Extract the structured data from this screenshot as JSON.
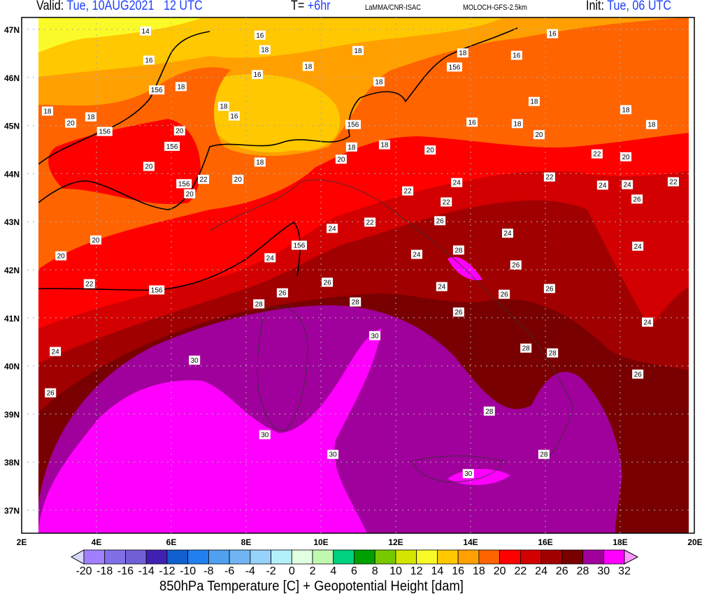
{
  "header": {
    "valid_label": "Valid:",
    "valid_date": "Tue, 10AUG2021",
    "valid_time": "12 UTC",
    "lead_label": "T=",
    "lead_value": "+6hr",
    "institution": "LaMMA/CNR-ISAC",
    "model": "MOLOCH-GFS-2.5km",
    "init_label": "Init:",
    "init_value": "Tue, 06 UTC"
  },
  "map": {
    "lon_range": [
      2,
      20
    ],
    "lat_range": [
      36.5,
      47.25
    ],
    "lat_ticks": [
      "47N",
      "46N",
      "45N",
      "44N",
      "43N",
      "42N",
      "41N",
      "40N",
      "39N",
      "38N",
      "37N"
    ],
    "lat_tick_values": [
      47,
      46,
      45,
      44,
      43,
      42,
      41,
      40,
      39,
      38,
      37
    ],
    "lon_ticks": [
      "2E",
      "4E",
      "6E",
      "8E",
      "10E",
      "12E",
      "14E",
      "16E",
      "18E",
      "20E"
    ],
    "lon_tick_values": [
      2,
      4,
      6,
      8,
      10,
      12,
      14,
      16,
      18,
      20
    ],
    "grid": "dotted",
    "contour_color": "#000000",
    "contour_labels": [
      {
        "t": "14",
        "lon": 5.31,
        "lat": 47.17
      },
      {
        "t": "16",
        "lon": 8.37,
        "lat": 46.88
      },
      {
        "t": "18",
        "lon": 8.5,
        "lat": 46.78
      },
      {
        "t": "16",
        "lon": 5.4,
        "lat": 46.36
      },
      {
        "t": "18",
        "lon": 6.26,
        "lat": 45.81
      },
      {
        "t": "156",
        "lon": 5.61,
        "lat": 45.74
      },
      {
        "t": "18",
        "lon": 2.69,
        "lat": 45.3
      },
      {
        "t": "18",
        "lon": 3.85,
        "lat": 45.18
      },
      {
        "t": "20",
        "lon": 3.31,
        "lat": 45.05
      },
      {
        "t": "156",
        "lon": 4.22,
        "lat": 45.08
      },
      {
        "t": "18",
        "lon": 7.4,
        "lat": 45.4
      },
      {
        "t": "16",
        "lon": 7.68,
        "lat": 45.4
      },
      {
        "t": "20",
        "lon": 6.22,
        "lat": 44.89
      },
      {
        "t": "156",
        "lon": 6.02,
        "lat": 44.77
      },
      {
        "t": "20",
        "lon": 5.4,
        "lat": 44.15
      },
      {
        "t": "156",
        "lon": 6.34,
        "lat": 43.79
      },
      {
        "t": "20",
        "lon": 6.49,
        "lat": 43.58
      },
      {
        "t": "22",
        "lon": 6.86,
        "lat": 43.88
      },
      {
        "t": "20",
        "lon": 7.78,
        "lat": 43.88
      },
      {
        "t": "18",
        "lon": 8.37,
        "lat": 44.24
      },
      {
        "t": "16",
        "lon": 8.3,
        "lat": 46.06
      },
      {
        "t": "18",
        "lon": 9.66,
        "lat": 46.23
      },
      {
        "t": "18",
        "lon": 10.99,
        "lat": 46.56
      },
      {
        "t": "18",
        "lon": 11.55,
        "lat": 45.91
      },
      {
        "t": "156",
        "lon": 10.86,
        "lat": 45.02
      },
      {
        "t": "18",
        "lon": 11.7,
        "lat": 44.6
      },
      {
        "t": "20",
        "lon": 10.54,
        "lat": 44.3
      },
      {
        "t": "18",
        "lon": 10.82,
        "lat": 44.35
      },
      {
        "t": "20",
        "lon": 12.92,
        "lat": 44.49
      },
      {
        "t": "22",
        "lon": 12.32,
        "lat": 43.64
      },
      {
        "t": "22",
        "lon": 13.35,
        "lat": 43.41
      },
      {
        "t": "24",
        "lon": 13.63,
        "lat": 43.61
      },
      {
        "t": "26",
        "lon": 13.18,
        "lat": 43.02
      },
      {
        "t": "28",
        "lon": 13.68,
        "lat": 42.41
      },
      {
        "t": "24",
        "lon": 12.56,
        "lat": 42.32
      },
      {
        "t": "24",
        "lon": 13.23,
        "lat": 41.65
      },
      {
        "t": "22",
        "lon": 11.31,
        "lat": 42.99
      },
      {
        "t": "24",
        "lon": 10.3,
        "lat": 42.86
      },
      {
        "t": "156",
        "lon": 9.42,
        "lat": 42.51
      },
      {
        "t": "24",
        "lon": 8.64,
        "lat": 42.25
      },
      {
        "t": "26",
        "lon": 8.97,
        "lat": 41.52
      },
      {
        "t": "26",
        "lon": 10.17,
        "lat": 41.74
      },
      {
        "t": "28",
        "lon": 8.34,
        "lat": 41.29
      },
      {
        "t": "28",
        "lon": 10.92,
        "lat": 41.33
      },
      {
        "t": "30",
        "lon": 11.44,
        "lat": 40.63
      },
      {
        "t": "30",
        "lon": 6.62,
        "lat": 40.12
      },
      {
        "t": "30",
        "lon": 8.5,
        "lat": 38.57
      },
      {
        "t": "30",
        "lon": 10.32,
        "lat": 38.16
      },
      {
        "t": "30",
        "lon": 13.94,
        "lat": 37.76
      },
      {
        "t": "28",
        "lon": 14.5,
        "lat": 39.06
      },
      {
        "t": "28",
        "lon": 15.96,
        "lat": 38.16
      },
      {
        "t": "28",
        "lon": 16.19,
        "lat": 40.27
      },
      {
        "t": "28",
        "lon": 15.48,
        "lat": 40.37
      },
      {
        "t": "26",
        "lon": 13.68,
        "lat": 41.12
      },
      {
        "t": "26",
        "lon": 14.9,
        "lat": 41.49
      },
      {
        "t": "26",
        "lon": 15.21,
        "lat": 42.1
      },
      {
        "t": "26",
        "lon": 16.11,
        "lat": 41.61
      },
      {
        "t": "24",
        "lon": 14.99,
        "lat": 42.76
      },
      {
        "t": "26",
        "lon": 18.47,
        "lat": 39.83
      },
      {
        "t": "24",
        "lon": 18.73,
        "lat": 40.91
      },
      {
        "t": "24",
        "lon": 18.47,
        "lat": 42.49
      },
      {
        "t": "26",
        "lon": 18.45,
        "lat": 43.47
      },
      {
        "t": "24",
        "lon": 18.19,
        "lat": 43.77
      },
      {
        "t": "24",
        "lon": 17.53,
        "lat": 43.76
      },
      {
        "t": "22",
        "lon": 17.38,
        "lat": 44.41
      },
      {
        "t": "20",
        "lon": 18.15,
        "lat": 44.35
      },
      {
        "t": "22",
        "lon": 19.42,
        "lat": 43.83
      },
      {
        "t": "22",
        "lon": 16.11,
        "lat": 43.93
      },
      {
        "t": "20",
        "lon": 15.83,
        "lat": 44.81
      },
      {
        "t": "18",
        "lon": 15.25,
        "lat": 45.04
      },
      {
        "t": "16",
        "lon": 14.04,
        "lat": 45.07
      },
      {
        "t": "18",
        "lon": 15.7,
        "lat": 45.5
      },
      {
        "t": "18",
        "lon": 18.15,
        "lat": 45.33
      },
      {
        "t": "18",
        "lon": 18.84,
        "lat": 45.02
      },
      {
        "t": "16",
        "lon": 16.19,
        "lat": 46.91
      },
      {
        "t": "16",
        "lon": 15.23,
        "lat": 46.46
      },
      {
        "t": "18",
        "lon": 13.79,
        "lat": 46.51
      },
      {
        "t": "156",
        "lon": 13.57,
        "lat": 46.42
      },
      {
        "t": "20",
        "lon": 3.98,
        "lat": 42.62
      },
      {
        "t": "20",
        "lon": 3.05,
        "lat": 42.29
      },
      {
        "t": "22",
        "lon": 3.81,
        "lat": 41.71
      },
      {
        "t": "156",
        "lon": 5.61,
        "lat": 41.58
      },
      {
        "t": "24",
        "lon": 2.6,
        "lat": 40.3
      },
      {
        "t": "26",
        "lon": 2.77,
        "lat": 39.44
      }
    ]
  },
  "colorbar": {
    "labels": [
      "-20",
      "-18",
      "-16",
      "-14",
      "-12",
      "-10",
      "-8",
      "-6",
      "-4",
      "-2",
      "0",
      "2",
      "4",
      "6",
      "8",
      "10",
      "12",
      "14",
      "16",
      "18",
      "20",
      "22",
      "24",
      "26",
      "28",
      "30",
      "32"
    ],
    "colors": [
      "#a080ff",
      "#8070e8",
      "#7060d8",
      "#4020b0",
      "#1060d0",
      "#2080f0",
      "#50a0f0",
      "#70b4f4",
      "#96d2fa",
      "#b4f0fa",
      "#e1ffe1",
      "#c0f8b0",
      "#00d280",
      "#00a000",
      "#78c800",
      "#d2e600",
      "#fafa28",
      "#ffc800",
      "#ffa000",
      "#ff6400",
      "#ff0000",
      "#d20000",
      "#a00000",
      "#780000",
      "#a0009b",
      "#ff00ff"
    ],
    "under_color": "#d8d8ff",
    "over_color": "#ff99ff",
    "title": "850hPa Temperature [C] + Geopotential Height [dam]"
  }
}
